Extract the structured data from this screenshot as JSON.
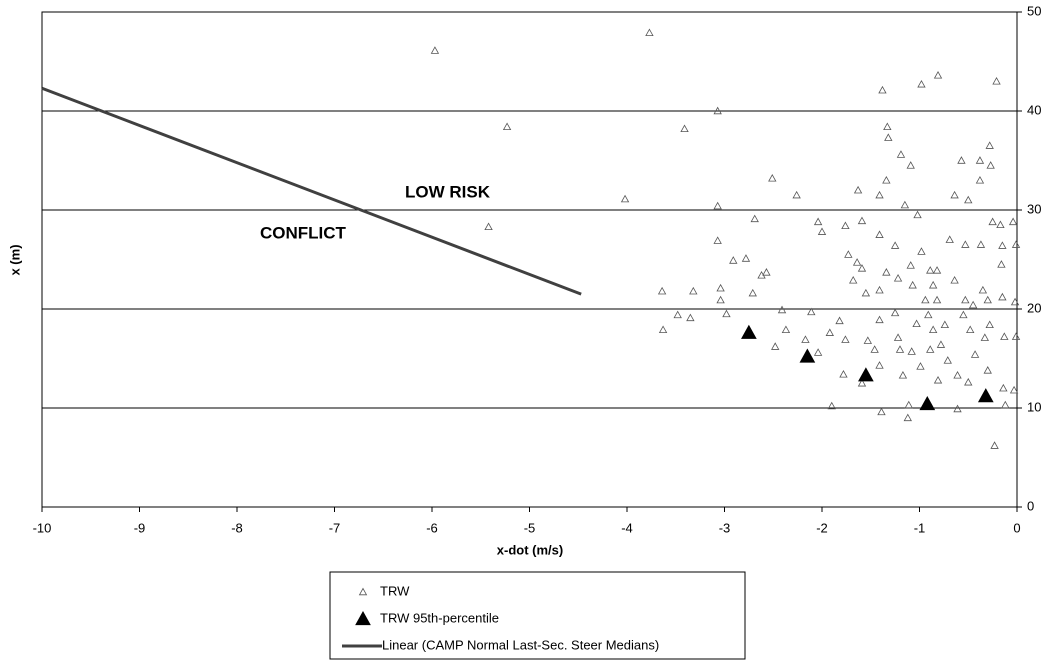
{
  "chart_data": {
    "type": "scatter",
    "xlabel": "x-dot (m/s)",
    "ylabel": "x (m)",
    "annotations": [
      {
        "text": "LOW RISK"
      },
      {
        "text": "CONFLICT"
      }
    ],
    "xlim": [
      -10,
      0
    ],
    "xticks": [
      -10,
      -9,
      -8,
      -7,
      -6,
      -5,
      -4,
      -3,
      -2,
      -1,
      0
    ],
    "ylim": [
      0,
      50
    ],
    "yticks": [
      0,
      10,
      20,
      30,
      40,
      50
    ],
    "yaxis_side": "right",
    "grid": "y",
    "legend": "bottom",
    "series": [
      {
        "name": "TRW",
        "color": "#555555",
        "marker": "hollow-triangle",
        "x": [
          -5.97,
          -3.77,
          -5.23,
          -5.42,
          -4.02,
          -3.41,
          -3.07,
          -3.64,
          -3.32,
          -3.48,
          -3.35,
          -3.63,
          -3.07,
          -3.07,
          -3.04,
          -3.04,
          -2.98,
          -2.51,
          -2.91,
          -2.78,
          -2.69,
          -2.71,
          -2.62,
          -2.57,
          -2.26,
          -2.41,
          -2.37,
          -2.48,
          -2.17,
          -2.11,
          -2.04,
          -2.0,
          -2.04,
          -1.92,
          -1.9,
          -1.76,
          -1.73,
          -1.68,
          -1.82,
          -1.76,
          -1.78,
          -1.63,
          -1.59,
          -1.64,
          -1.59,
          -1.55,
          -1.53,
          -1.59,
          -1.38,
          -1.33,
          -1.32,
          -1.34,
          -1.41,
          -1.41,
          -1.34,
          -1.41,
          -1.41,
          -1.46,
          -1.41,
          -1.39,
          -1.25,
          -1.22,
          -1.25,
          -1.22,
          -1.19,
          -1.15,
          -1.2,
          -1.17,
          -1.11,
          -1.09,
          -1.09,
          -1.07,
          -1.03,
          -1.08,
          -1.12,
          -0.98,
          -1.02,
          -0.98,
          -0.94,
          -0.99,
          -0.89,
          -0.86,
          -0.91,
          -0.86,
          -0.89,
          -0.81,
          -0.82,
          -0.82,
          -0.81,
          -0.74,
          -0.78,
          -0.69,
          -0.64,
          -0.71,
          -0.64,
          -0.61,
          -0.57,
          -0.61,
          -0.53,
          -0.5,
          -0.53,
          -0.55,
          -0.48,
          -0.45,
          -0.43,
          -0.5,
          -0.38,
          -0.38,
          -0.37,
          -0.35,
          -0.33,
          -0.28,
          -0.27,
          -0.3,
          -0.28,
          -0.3,
          -0.21,
          -0.25,
          -0.23,
          -0.17,
          -0.15,
          -0.16,
          -0.15,
          -0.13,
          -0.14,
          -0.12,
          -0.04,
          -0.01,
          -0.02,
          -0.01,
          -0.03
        ],
        "values": [
          46.1,
          47.9,
          38.4,
          28.3,
          31.1,
          38.2,
          40,
          21.8,
          21.8,
          19.4,
          19.1,
          17.9,
          30.4,
          26.9,
          22.1,
          20.9,
          19.5,
          33.2,
          24.9,
          25.1,
          29.1,
          21.6,
          23.4,
          23.7,
          31.5,
          19.9,
          17.9,
          16.2,
          16.9,
          19.7,
          28.8,
          27.8,
          15.6,
          17.6,
          10.2,
          28.4,
          25.5,
          22.9,
          18.8,
          16.9,
          13.4,
          32,
          28.9,
          24.7,
          24.1,
          21.6,
          16.8,
          12.5,
          42.1,
          38.4,
          37.3,
          33,
          31.5,
          27.5,
          23.7,
          21.9,
          18.9,
          15.9,
          14.3,
          9.6,
          26.4,
          23.1,
          19.6,
          17.1,
          35.6,
          30.5,
          15.9,
          13.3,
          10.3,
          34.5,
          24.4,
          22.4,
          18.5,
          15.7,
          9,
          42.7,
          29.5,
          25.8,
          20.9,
          14.2,
          23.9,
          22.4,
          19.4,
          17.9,
          15.9,
          43.6,
          23.9,
          20.9,
          12.8,
          18.4,
          16.4,
          27,
          31.5,
          14.8,
          22.9,
          13.3,
          35,
          9.9,
          26.5,
          31,
          20.9,
          19.4,
          17.9,
          20.4,
          15.4,
          12.6,
          35,
          33,
          26.5,
          21.9,
          17.1,
          36.5,
          34.5,
          20.9,
          18.4,
          13.8,
          43,
          28.8,
          6.2,
          28.5,
          26.4,
          24.5,
          21.2,
          17.2,
          12,
          10.3,
          28.8,
          26.5,
          20.7,
          17.2,
          11.8
        ]
      },
      {
        "name": "TRW 95th-percentile",
        "color": "#000000",
        "marker": "filled-triangle",
        "x": [
          -2.75,
          -2.15,
          -1.55,
          -0.92,
          -0.32
        ],
        "values": [
          17.6,
          15.2,
          13.3,
          10.4,
          11.2
        ]
      },
      {
        "name": "Linear (CAMP Normal Last-Sec. Steer Medians)",
        "color": "#404040",
        "marker": "line",
        "x": [
          -10,
          -4.47
        ],
        "values": [
          42.3,
          21.5
        ]
      }
    ]
  }
}
